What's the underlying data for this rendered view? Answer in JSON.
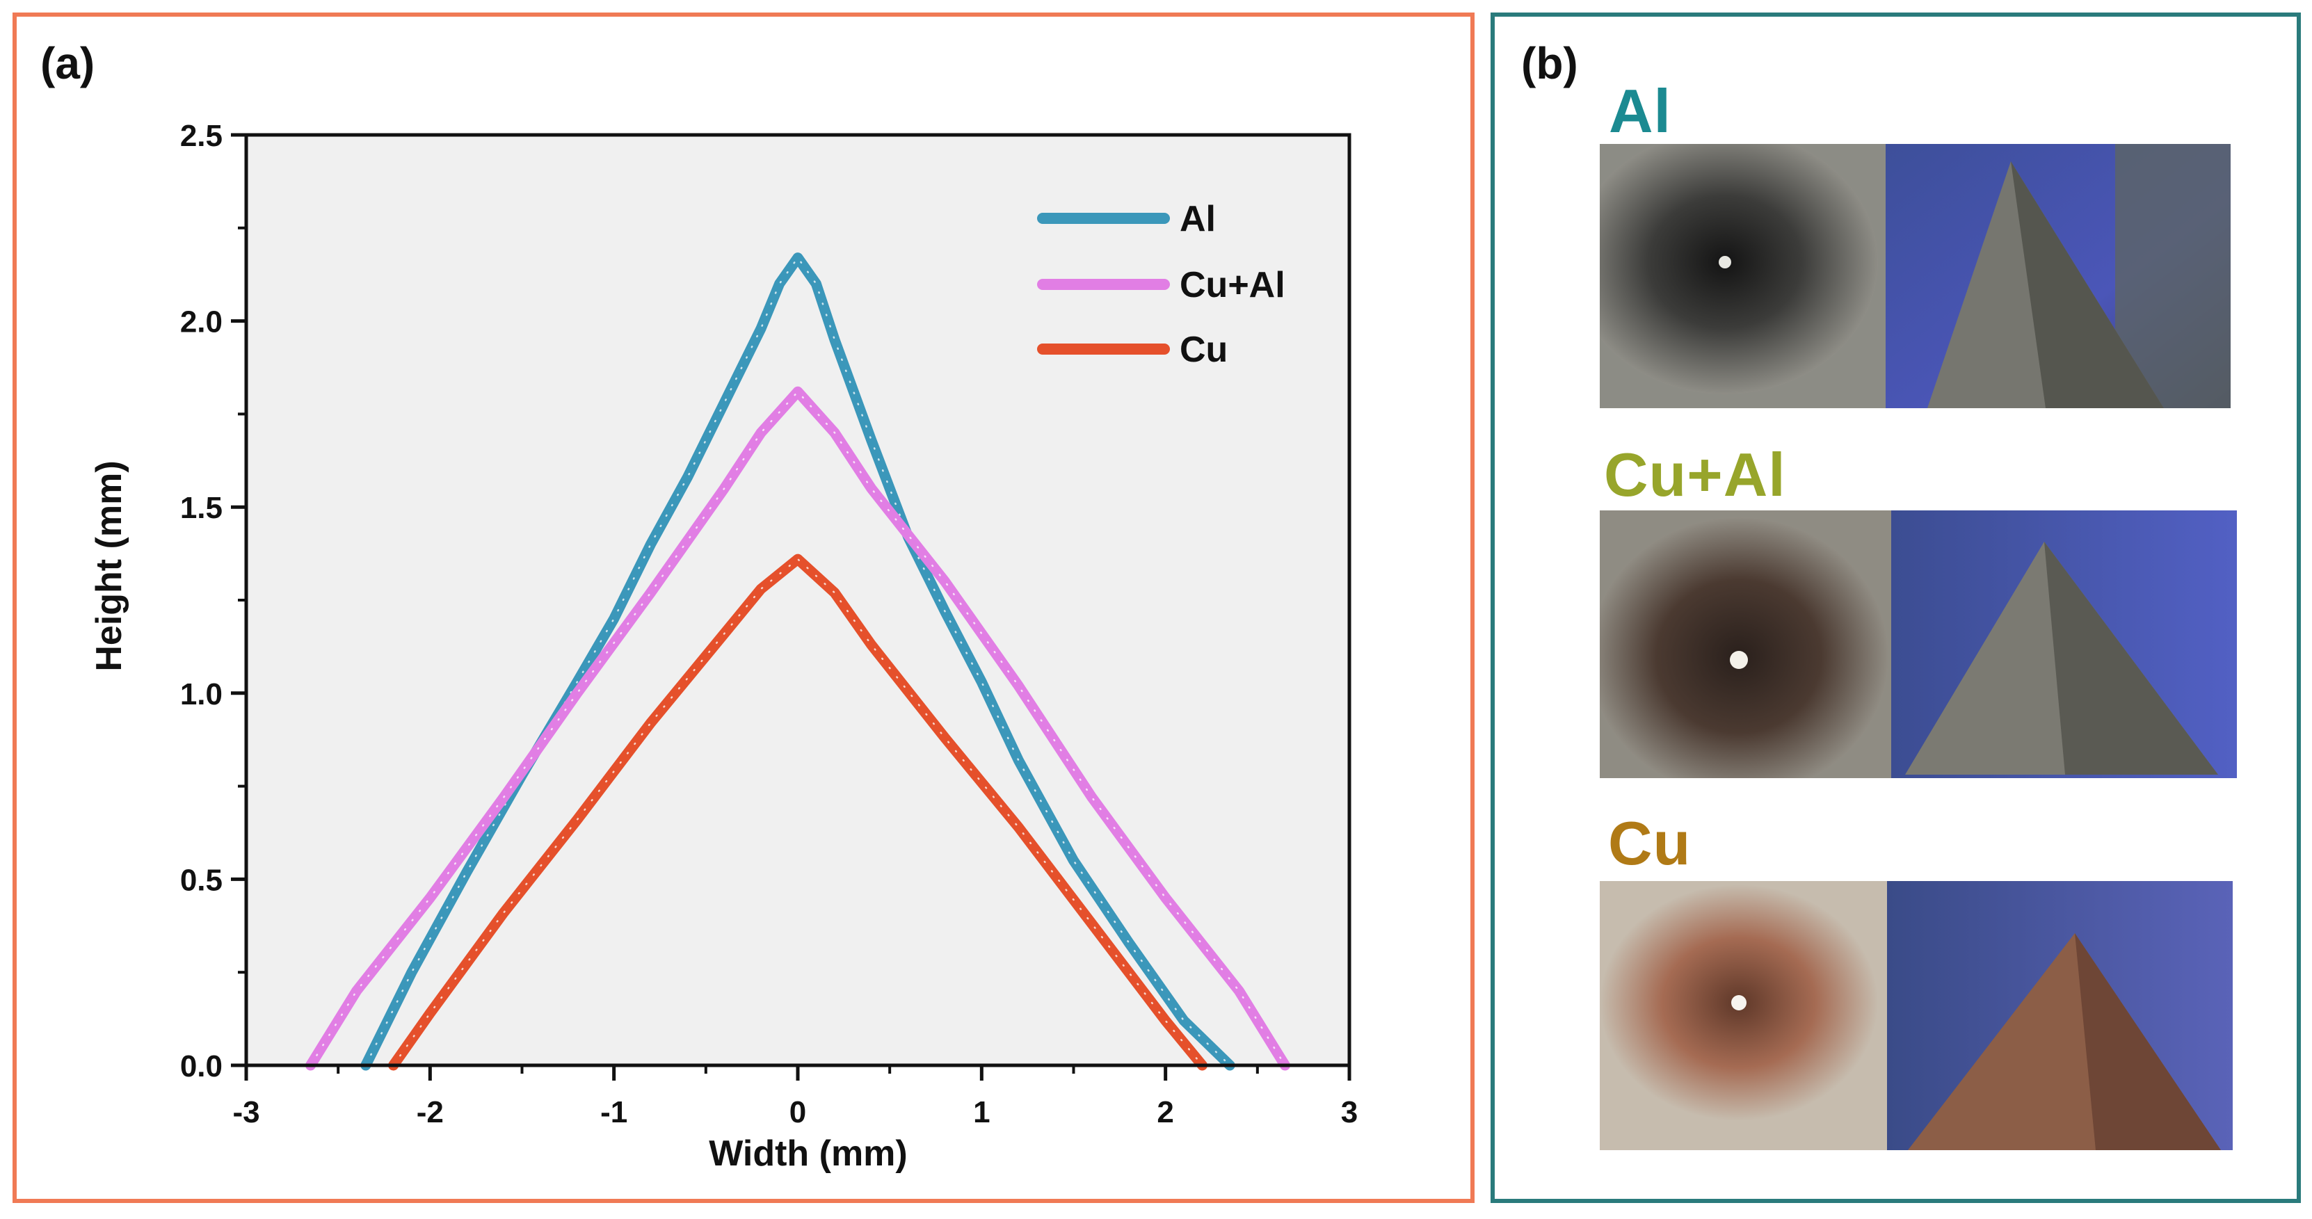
{
  "panel_a": {
    "label": "(a)"
  },
  "panel_b": {
    "label": "(b)"
  },
  "chart_data": {
    "type": "line",
    "title": "",
    "xlabel": "Width (mm)",
    "ylabel": "Height (mm)",
    "xlim": [
      -3,
      3
    ],
    "ylim": [
      0,
      2.5
    ],
    "xticks": [
      "-3",
      "-2",
      "-1",
      "0",
      "1",
      "2",
      "3"
    ],
    "yticks": [
      "0.0",
      "0.5",
      "1.0",
      "1.5",
      "2.0",
      "2.5"
    ],
    "legend_position": "top-right",
    "series": [
      {
        "name": "Al",
        "color": "#3b97ba",
        "x": [
          -2.35,
          -2.1,
          -1.8,
          -1.5,
          -1.2,
          -1.0,
          -0.8,
          -0.6,
          -0.4,
          -0.2,
          -0.1,
          0.0,
          0.1,
          0.2,
          0.4,
          0.6,
          0.8,
          1.0,
          1.2,
          1.5,
          1.8,
          2.1,
          2.35
        ],
        "values": [
          0.0,
          0.25,
          0.52,
          0.78,
          1.03,
          1.2,
          1.4,
          1.58,
          1.78,
          1.98,
          2.1,
          2.17,
          2.1,
          1.95,
          1.68,
          1.42,
          1.22,
          1.03,
          0.82,
          0.55,
          0.33,
          0.12,
          0.0
        ]
      },
      {
        "name": "Cu+Al",
        "color": "#e17ee4",
        "x": [
          -2.65,
          -2.4,
          -2.0,
          -1.6,
          -1.2,
          -0.8,
          -0.4,
          -0.2,
          0.0,
          0.2,
          0.4,
          0.8,
          1.2,
          1.6,
          2.0,
          2.4,
          2.65
        ],
        "values": [
          0.0,
          0.2,
          0.45,
          0.72,
          1.0,
          1.27,
          1.55,
          1.7,
          1.81,
          1.7,
          1.55,
          1.3,
          1.02,
          0.72,
          0.45,
          0.2,
          0.0
        ]
      },
      {
        "name": "Cu",
        "color": "#e5502b",
        "x": [
          -2.2,
          -2.0,
          -1.6,
          -1.2,
          -0.8,
          -0.4,
          -0.2,
          0.0,
          0.2,
          0.4,
          0.8,
          1.2,
          1.6,
          2.0,
          2.2
        ],
        "values": [
          0.0,
          0.14,
          0.41,
          0.66,
          0.92,
          1.16,
          1.28,
          1.36,
          1.27,
          1.13,
          0.88,
          0.64,
          0.38,
          0.12,
          0.0
        ]
      }
    ]
  },
  "samples": [
    {
      "name": "Al",
      "color": "#1b8a91",
      "tint": "#8c8c85",
      "ring": "#2c2c2c"
    },
    {
      "name": "Cu+Al",
      "color": "#97a52b",
      "tint": "#8f8c83",
      "ring": "#3a2e27"
    },
    {
      "name": "Cu",
      "color": "#b07a16",
      "tint": "#c6bcae",
      "ring": "#8d5840"
    }
  ]
}
